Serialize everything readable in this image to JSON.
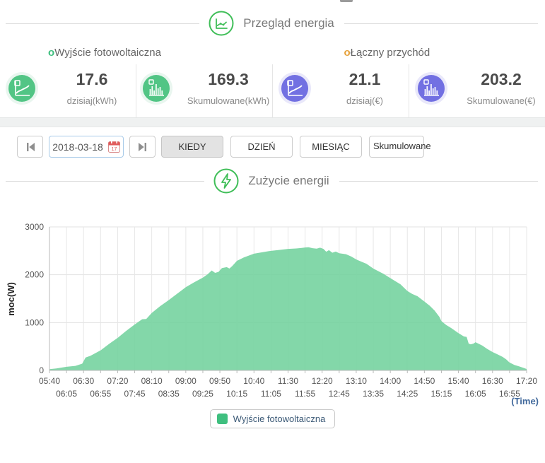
{
  "header": {
    "title": "Przegląd energia"
  },
  "overview": {
    "groups": [
      {
        "label": "Wyjście fotowoltaiczna"
      },
      {
        "label": "Łączny przychód"
      }
    ],
    "stats": [
      {
        "value": "17.6",
        "label": "dzisiaj(kWh)",
        "icon": "line-chart",
        "color": "green"
      },
      {
        "value": "169.3",
        "label": "Skumulowane(kWh)",
        "icon": "bar-chart",
        "color": "green"
      },
      {
        "value": "21.1",
        "label": "dzisiaj(€)",
        "icon": "line-chart",
        "color": "purple"
      },
      {
        "value": "203.2",
        "label": "Skumulowane(€)",
        "icon": "bar-chart",
        "color": "purple"
      }
    ]
  },
  "toolbar": {
    "date_value": "2018-03-18",
    "tabs": [
      {
        "label": "KIEDY",
        "active": true
      },
      {
        "label": "DZIEŃ",
        "active": false
      },
      {
        "label": "MIESIĄC",
        "active": false
      },
      {
        "label": "Skumulowane",
        "active": false
      }
    ]
  },
  "section2": {
    "title": "Zużycie energii"
  },
  "chart_data": {
    "type": "area",
    "title": "Zużycie energii",
    "ylabel": "moc(W)",
    "xlabel": "(Time)",
    "ylim": [
      0,
      3000
    ],
    "yticks": [
      0,
      1000,
      2000,
      3000
    ],
    "grid": true,
    "legend_position": "bottom",
    "x_range_minutes": [
      340,
      1040
    ],
    "x_tick_step_minutes": 25,
    "x_tick_labels": [
      "05:40",
      "06:05",
      "06:30",
      "06:55",
      "07:20",
      "07:45",
      "08:10",
      "08:35",
      "09:00",
      "09:25",
      "09:50",
      "10:15",
      "10:40",
      "11:05",
      "11:30",
      "11:55",
      "12:20",
      "12:45",
      "13:10",
      "13:35",
      "14:00",
      "14:25",
      "14:50",
      "15:15",
      "15:40",
      "16:05",
      "16:30",
      "16:55",
      "17:20"
    ],
    "series": [
      {
        "name": "Wyjście fotowoltaiczna",
        "points": [
          [
            340,
            25
          ],
          [
            350,
            40
          ],
          [
            365,
            75
          ],
          [
            378,
            95
          ],
          [
            388,
            140
          ],
          [
            393,
            270
          ],
          [
            400,
            305
          ],
          [
            415,
            420
          ],
          [
            428,
            560
          ],
          [
            440,
            680
          ],
          [
            452,
            820
          ],
          [
            465,
            960
          ],
          [
            470,
            1010
          ],
          [
            476,
            1070
          ],
          [
            482,
            1075
          ],
          [
            490,
            1200
          ],
          [
            502,
            1340
          ],
          [
            515,
            1470
          ],
          [
            528,
            1610
          ],
          [
            540,
            1740
          ],
          [
            552,
            1840
          ],
          [
            565,
            1940
          ],
          [
            572,
            2010
          ],
          [
            578,
            2090
          ],
          [
            583,
            2040
          ],
          [
            588,
            2060
          ],
          [
            593,
            2140
          ],
          [
            600,
            2160
          ],
          [
            604,
            2130
          ],
          [
            608,
            2180
          ],
          [
            615,
            2290
          ],
          [
            625,
            2360
          ],
          [
            640,
            2440
          ],
          [
            652,
            2470
          ],
          [
            665,
            2500
          ],
          [
            678,
            2520
          ],
          [
            690,
            2540
          ],
          [
            702,
            2550
          ],
          [
            710,
            2560
          ],
          [
            715,
            2570
          ],
          [
            720,
            2575
          ],
          [
            726,
            2555
          ],
          [
            732,
            2545
          ],
          [
            737,
            2565
          ],
          [
            742,
            2540
          ],
          [
            746,
            2480
          ],
          [
            750,
            2515
          ],
          [
            755,
            2460
          ],
          [
            760,
            2485
          ],
          [
            765,
            2450
          ],
          [
            775,
            2430
          ],
          [
            783,
            2380
          ],
          [
            790,
            2320
          ],
          [
            798,
            2270
          ],
          [
            805,
            2230
          ],
          [
            815,
            2130
          ],
          [
            823,
            2070
          ],
          [
            830,
            2020
          ],
          [
            840,
            1930
          ],
          [
            848,
            1860
          ],
          [
            855,
            1800
          ],
          [
            865,
            1660
          ],
          [
            872,
            1600
          ],
          [
            880,
            1550
          ],
          [
            890,
            1440
          ],
          [
            898,
            1350
          ],
          [
            905,
            1250
          ],
          [
            912,
            1120
          ],
          [
            915,
            1030
          ],
          [
            922,
            950
          ],
          [
            930,
            880
          ],
          [
            940,
            780
          ],
          [
            948,
            710
          ],
          [
            952,
            700
          ],
          [
            955,
            560
          ],
          [
            958,
            545
          ],
          [
            962,
            560
          ],
          [
            965,
            590
          ],
          [
            970,
            555
          ],
          [
            975,
            520
          ],
          [
            982,
            450
          ],
          [
            990,
            385
          ],
          [
            998,
            330
          ],
          [
            1005,
            280
          ],
          [
            1010,
            230
          ],
          [
            1015,
            165
          ],
          [
            1022,
            115
          ],
          [
            1030,
            80
          ],
          [
            1036,
            50
          ],
          [
            1040,
            30
          ]
        ]
      }
    ]
  },
  "colors": {
    "accent_green": "#3fbe58",
    "stat_green": "#52c585",
    "stat_purple": "#7270e2",
    "bullet_green": "#3fbf7f",
    "bullet_orange": "#e6a23c",
    "area_fill": "#76d3a0",
    "legend_swatch": "#3fbf7f",
    "time_label": "#41699c",
    "grid_line": "#e7e7e7",
    "axis_line": "#b9b9b9"
  }
}
